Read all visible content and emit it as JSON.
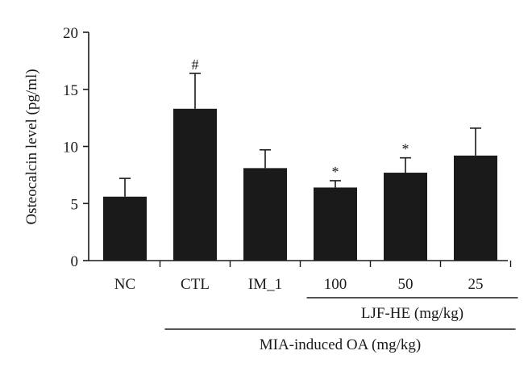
{
  "chart_data": {
    "type": "bar",
    "title": "",
    "xlabel": "",
    "ylabel": "Osteocalcin level (pg/ml)",
    "ylim": [
      0,
      20
    ],
    "yticks": [
      0,
      5,
      10,
      15,
      20
    ],
    "categories": [
      "NC",
      "CTL",
      "IM_1",
      "100",
      "50",
      "25"
    ],
    "values": [
      5.6,
      13.3,
      8.1,
      6.4,
      7.7,
      9.2
    ],
    "errors": [
      1.6,
      3.1,
      1.6,
      0.6,
      1.3,
      2.4
    ],
    "significance": [
      "",
      "#",
      "",
      "*",
      "*",
      ""
    ],
    "bar_color": "#1a1a1a",
    "grid": false,
    "legend": "none",
    "group_brackets": [
      {
        "label": "LJF-HE (mg/kg)",
        "categories": [
          "100",
          "50",
          "25"
        ]
      },
      {
        "label": "MIA-induced OA (mg/kg)",
        "categories": [
          "CTL",
          "IM_1",
          "100",
          "50",
          "25"
        ]
      }
    ]
  }
}
